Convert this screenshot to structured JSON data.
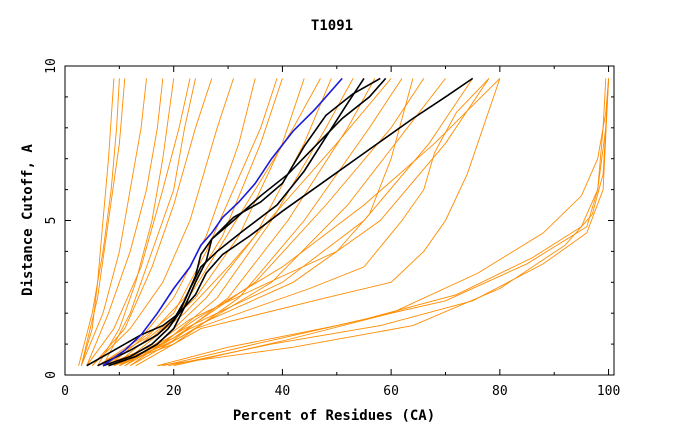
{
  "chart_data": {
    "type": "line",
    "title": "T1091",
    "xlabel": "Percent of Residues (CA)",
    "ylabel": "Distance Cutoff, A",
    "xlim": [
      0,
      101
    ],
    "ylim": [
      0,
      10
    ],
    "xticks": [
      0,
      20,
      40,
      60,
      80,
      100
    ],
    "yticks": [
      0,
      5,
      10
    ],
    "grid": false,
    "legend": "none",
    "colors": {
      "bulk": "#ff8c00",
      "highlight_dark": "#000000",
      "highlight_blue": "#1a1adc"
    },
    "series": [
      {
        "color": "#ff8c00",
        "points": [
          [
            2.5,
            0.3
          ],
          [
            5,
            2
          ],
          [
            7,
            4
          ],
          [
            8.5,
            6
          ],
          [
            9.5,
            8
          ],
          [
            10,
            9.6
          ]
        ]
      },
      {
        "color": "#ff8c00",
        "points": [
          [
            3,
            0.3
          ],
          [
            6,
            2.5
          ],
          [
            8,
            5
          ],
          [
            10,
            7.5
          ],
          [
            11,
            9.6
          ]
        ]
      },
      {
        "color": "#ff8c00",
        "points": [
          [
            3,
            0.3
          ],
          [
            7,
            2
          ],
          [
            10,
            4
          ],
          [
            12,
            6
          ],
          [
            14,
            8
          ],
          [
            15,
            9.6
          ]
        ]
      },
      {
        "color": "#ff8c00",
        "points": [
          [
            4,
            0.3
          ],
          [
            8,
            2
          ],
          [
            12,
            4
          ],
          [
            15,
            6
          ],
          [
            17,
            8
          ],
          [
            18,
            9.6
          ]
        ]
      },
      {
        "color": "#ff8c00",
        "points": [
          [
            4,
            0.3
          ],
          [
            9,
            1.5
          ],
          [
            14,
            3.5
          ],
          [
            18,
            6
          ],
          [
            21,
            8
          ],
          [
            23,
            9.6
          ]
        ]
      },
      {
        "color": "#ff8c00",
        "points": [
          [
            5,
            0.3
          ],
          [
            11,
            1.5
          ],
          [
            16,
            3.5
          ],
          [
            20,
            5.5
          ],
          [
            24,
            8
          ],
          [
            27,
            9.6
          ]
        ]
      },
      {
        "color": "#ff8c00",
        "points": [
          [
            5,
            0.3
          ],
          [
            12,
            1.5
          ],
          [
            18,
            3
          ],
          [
            23,
            5
          ],
          [
            28,
            8
          ],
          [
            31,
            9.6
          ]
        ]
      },
      {
        "color": "#ff8c00",
        "points": [
          [
            6,
            0.3
          ],
          [
            14,
            1.2
          ],
          [
            20,
            2.5
          ],
          [
            26,
            4.5
          ],
          [
            32,
            7.5
          ],
          [
            35,
            9.6
          ]
        ]
      },
      {
        "color": "#ff8c00",
        "points": [
          [
            6,
            0.3
          ],
          [
            15,
            1.2
          ],
          [
            22,
            2.5
          ],
          [
            29,
            4.5
          ],
          [
            36,
            7.5
          ],
          [
            40,
            9.6
          ]
        ]
      },
      {
        "color": "#ff8c00",
        "points": [
          [
            7,
            0.3
          ],
          [
            16,
            1.2
          ],
          [
            24,
            2.5
          ],
          [
            32,
            4.5
          ],
          [
            40,
            7.5
          ],
          [
            44,
            9.6
          ]
        ]
      },
      {
        "color": "#ff8c00",
        "points": [
          [
            7,
            0.3
          ],
          [
            17,
            1
          ],
          [
            26,
            2.5
          ],
          [
            35,
            4.5
          ],
          [
            44,
            7.5
          ],
          [
            49,
            9.6
          ]
        ]
      },
      {
        "color": "#ff8c00",
        "points": [
          [
            8,
            0.3
          ],
          [
            18,
            1
          ],
          [
            28,
            2.5
          ],
          [
            38,
            5
          ],
          [
            48,
            8
          ],
          [
            53,
            9.6
          ]
        ]
      },
      {
        "color": "#ff8c00",
        "points": [
          [
            8,
            0.3
          ],
          [
            19,
            1
          ],
          [
            30,
            2.5
          ],
          [
            41,
            5
          ],
          [
            52,
            8
          ],
          [
            57,
            9.6
          ]
        ]
      },
      {
        "color": "#ff8c00",
        "points": [
          [
            9,
            0.3
          ],
          [
            20,
            1
          ],
          [
            32,
            2.5
          ],
          [
            44,
            5
          ],
          [
            56,
            8
          ],
          [
            62,
            9.6
          ]
        ]
      },
      {
        "color": "#ff8c00",
        "points": [
          [
            9,
            0.3
          ],
          [
            20,
            1.2
          ],
          [
            35,
            3
          ],
          [
            48,
            5.5
          ],
          [
            60,
            8
          ],
          [
            66,
            9.6
          ]
        ]
      },
      {
        "color": "#ff8c00",
        "points": [
          [
            10,
            0.3
          ],
          [
            21,
            1.2
          ],
          [
            38,
            3
          ],
          [
            52,
            5.5
          ],
          [
            63,
            8
          ],
          [
            70,
            9.6
          ]
        ]
      },
      {
        "color": "#ff8c00",
        "points": [
          [
            10,
            0.3
          ],
          [
            22,
            1.5
          ],
          [
            40,
            3
          ],
          [
            55,
            5
          ],
          [
            67,
            7.5
          ],
          [
            75,
            9.6
          ]
        ]
      },
      {
        "color": "#ff8c00",
        "points": [
          [
            11,
            0.3
          ],
          [
            23,
            1.5
          ],
          [
            42,
            3
          ],
          [
            58,
            5
          ],
          [
            70,
            7.5
          ],
          [
            78,
            9.6
          ]
        ]
      },
      {
        "color": "#ff8c00",
        "points": [
          [
            12,
            0.3
          ],
          [
            24,
            1.8
          ],
          [
            40,
            3.5
          ],
          [
            55,
            5.5
          ],
          [
            68,
            7.5
          ],
          [
            80,
            9.6
          ]
        ]
      },
      {
        "color": "#ff8c00",
        "points": [
          [
            10,
            0.3
          ],
          [
            22,
            2
          ],
          [
            30,
            3.5
          ],
          [
            40,
            5.5
          ],
          [
            50,
            7.5
          ],
          [
            60,
            9.6
          ]
        ]
      },
      {
        "color": "#ff8c00",
        "points": [
          [
            9,
            0.3
          ],
          [
            21,
            2
          ],
          [
            28,
            4
          ],
          [
            35,
            6
          ],
          [
            42,
            8
          ],
          [
            47,
            9.6
          ]
        ]
      },
      {
        "color": "#ff8c00",
        "points": [
          [
            8,
            0.3
          ],
          [
            20,
            2
          ],
          [
            26,
            4
          ],
          [
            31,
            6
          ],
          [
            36,
            8
          ],
          [
            39,
            9.6
          ]
        ]
      },
      {
        "color": "#ff8c00",
        "points": [
          [
            12,
            0.3
          ],
          [
            24,
            1.5
          ],
          [
            45,
            2.8
          ],
          [
            55,
            3.5
          ],
          [
            62,
            5
          ],
          [
            66,
            6
          ],
          [
            68,
            7.2
          ],
          [
            72,
            8.5
          ],
          [
            78,
            9.6
          ]
        ]
      },
      {
        "color": "#ff8c00",
        "points": [
          [
            11,
            0.3
          ],
          [
            23,
            1.8
          ],
          [
            40,
            3.2
          ],
          [
            50,
            4
          ],
          [
            56,
            5.2
          ],
          [
            60,
            7
          ],
          [
            64,
            9.6
          ]
        ]
      },
      {
        "color": "#ff8c00",
        "points": [
          [
            13,
            0.3
          ],
          [
            25,
            1.5
          ],
          [
            48,
            2.5
          ],
          [
            60,
            3
          ],
          [
            66,
            4
          ],
          [
            70,
            5
          ],
          [
            74,
            6.5
          ],
          [
            80,
            9.6
          ]
        ]
      },
      {
        "color": "#ff8c00",
        "points": [
          [
            6,
            0.3
          ],
          [
            10,
            1.5
          ],
          [
            13,
            3
          ],
          [
            16,
            5
          ],
          [
            18,
            7
          ],
          [
            20,
            9.6
          ]
        ]
      },
      {
        "color": "#ff8c00",
        "points": [
          [
            7,
            0.3
          ],
          [
            12,
            2
          ],
          [
            16,
            4
          ],
          [
            20,
            6
          ],
          [
            22,
            8
          ],
          [
            24,
            9.6
          ]
        ]
      },
      {
        "color": "#ff8c00",
        "points": [
          [
            3,
            0.3
          ],
          [
            5,
            1.5
          ],
          [
            6,
            3
          ],
          [
            7,
            5
          ],
          [
            8,
            7
          ],
          [
            9,
            9.6
          ]
        ]
      },
      {
        "color": "#ff8c00",
        "points": [
          [
            17,
            0.3
          ],
          [
            30,
            0.9
          ],
          [
            50,
            1.6
          ],
          [
            70,
            2.4
          ],
          [
            85,
            3.6
          ],
          [
            96,
            4.8
          ],
          [
            98,
            6
          ],
          [
            99,
            8
          ],
          [
            99.5,
            9.6
          ]
        ]
      },
      {
        "color": "#ff8c00",
        "points": [
          [
            18,
            0.3
          ],
          [
            35,
            1
          ],
          [
            55,
            1.8
          ],
          [
            72,
            2.6
          ],
          [
            86,
            3.8
          ],
          [
            95,
            4.8
          ],
          [
            98,
            6
          ],
          [
            99.5,
            8
          ],
          [
            100,
            9.6
          ]
        ]
      },
      {
        "color": "#ff8c00",
        "points": [
          [
            19,
            0.3
          ],
          [
            38,
            1
          ],
          [
            58,
            1.6
          ],
          [
            75,
            2.4
          ],
          [
            88,
            3.6
          ],
          [
            96,
            4.6
          ],
          [
            99,
            6
          ],
          [
            100,
            9.6
          ]
        ]
      },
      {
        "color": "#ff8c00",
        "points": [
          [
            20,
            0.3
          ],
          [
            40,
            1.1
          ],
          [
            60,
            2
          ],
          [
            76,
            3.3
          ],
          [
            88,
            4.6
          ],
          [
            95,
            5.8
          ],
          [
            98,
            7
          ],
          [
            99.5,
            8.5
          ],
          [
            100,
            9.6
          ]
        ]
      },
      {
        "color": "#ff8c00",
        "points": [
          [
            17,
            0.3
          ],
          [
            42,
            0.9
          ],
          [
            64,
            1.6
          ],
          [
            80,
            2.8
          ],
          [
            92,
            4.2
          ],
          [
            97,
            5.2
          ],
          [
            99,
            6.5
          ],
          [
            100,
            9.6
          ]
        ]
      },
      {
        "color": "#000000",
        "points": [
          [
            4,
            0.3
          ],
          [
            9,
            0.8
          ],
          [
            14,
            1.3
          ],
          [
            18,
            1.6
          ],
          [
            21,
            2
          ],
          [
            24,
            2.6
          ],
          [
            26,
            3.3
          ],
          [
            29,
            3.9
          ],
          [
            34,
            4.5
          ],
          [
            40,
            5.3
          ],
          [
            48,
            6.3
          ],
          [
            56,
            7.3
          ],
          [
            64,
            8.3
          ],
          [
            70,
            9
          ],
          [
            75,
            9.6
          ]
        ]
      },
      {
        "color": "#000000",
        "points": [
          [
            6,
            0.3
          ],
          [
            12,
            0.8
          ],
          [
            17,
            1.3
          ],
          [
            20,
            1.8
          ],
          [
            22,
            2.4
          ],
          [
            24,
            3.2
          ],
          [
            25,
            3.9
          ],
          [
            27,
            4.4
          ],
          [
            31,
            5
          ],
          [
            36,
            5.8
          ],
          [
            41,
            6.5
          ],
          [
            46,
            7.4
          ],
          [
            51,
            8.3
          ],
          [
            56,
            9
          ],
          [
            59,
            9.6
          ]
        ]
      },
      {
        "color": "#000000",
        "points": [
          [
            7,
            0.3
          ],
          [
            12,
            0.6
          ],
          [
            16,
            1
          ],
          [
            19,
            1.5
          ],
          [
            21,
            2
          ],
          [
            23,
            2.8
          ],
          [
            25,
            3.5
          ],
          [
            28,
            4
          ],
          [
            33,
            4.7
          ],
          [
            39,
            5.5
          ],
          [
            44,
            6.6
          ],
          [
            48,
            7.7
          ],
          [
            52,
            8.8
          ],
          [
            55,
            9.6
          ]
        ]
      },
      {
        "color": "#000000",
        "points": [
          [
            8,
            0.3
          ],
          [
            13,
            0.6
          ],
          [
            17,
            1
          ],
          [
            20,
            1.5
          ],
          [
            22,
            2.2
          ],
          [
            24,
            3
          ],
          [
            26,
            3.7
          ],
          [
            27,
            4.4
          ],
          [
            31,
            5.1
          ],
          [
            36,
            5.6
          ],
          [
            40,
            6.2
          ],
          [
            44,
            7.4
          ],
          [
            48,
            8.4
          ],
          [
            53,
            9.1
          ],
          [
            58,
            9.6
          ]
        ]
      },
      {
        "color": "#1a1adc",
        "points": [
          [
            7,
            0.3
          ],
          [
            11,
            0.8
          ],
          [
            14,
            1.3
          ],
          [
            17,
            2
          ],
          [
            20,
            2.8
          ],
          [
            23,
            3.5
          ],
          [
            25,
            4.2
          ],
          [
            27,
            4.6
          ],
          [
            29,
            5.1
          ],
          [
            32,
            5.6
          ],
          [
            35,
            6.2
          ],
          [
            38,
            7
          ],
          [
            42,
            7.9
          ],
          [
            46,
            8.6
          ],
          [
            51,
            9.6
          ]
        ]
      }
    ]
  }
}
